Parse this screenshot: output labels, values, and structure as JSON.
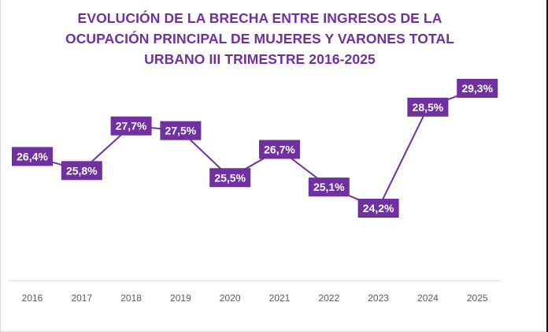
{
  "chart_data": {
    "type": "line",
    "title_lines": [
      "EVOLUCIÓN DE LA BRECHA ENTRE INGRESOS DE LA",
      "OCUPACIÓN PRINCIPAL DE MUJERES Y VARONES TOTAL",
      "URBANO III TRIMESTRE 2016-2025"
    ],
    "categories": [
      "2016",
      "2017",
      "2018",
      "2019",
      "2020",
      "2021",
      "2022",
      "2023",
      "2024",
      "2025"
    ],
    "values": [
      26.4,
      25.8,
      27.7,
      27.5,
      25.5,
      26.7,
      25.1,
      24.2,
      28.5,
      29.3
    ],
    "data_labels": [
      "26,4%",
      "25,8%",
      "27,7%",
      "27,5%",
      "25,5%",
      "26,7%",
      "25,1%",
      "24,2%",
      "28,5%",
      "29,3%"
    ],
    "ylim": [
      20,
      30
    ],
    "legend": "none",
    "grid": false,
    "colors": {
      "title": "#7030a0",
      "line": "#7030a0",
      "label_bg": "#7030a0",
      "label_text": "#ffffff",
      "axis": "#d9d9d9",
      "tick": "#595959"
    }
  }
}
